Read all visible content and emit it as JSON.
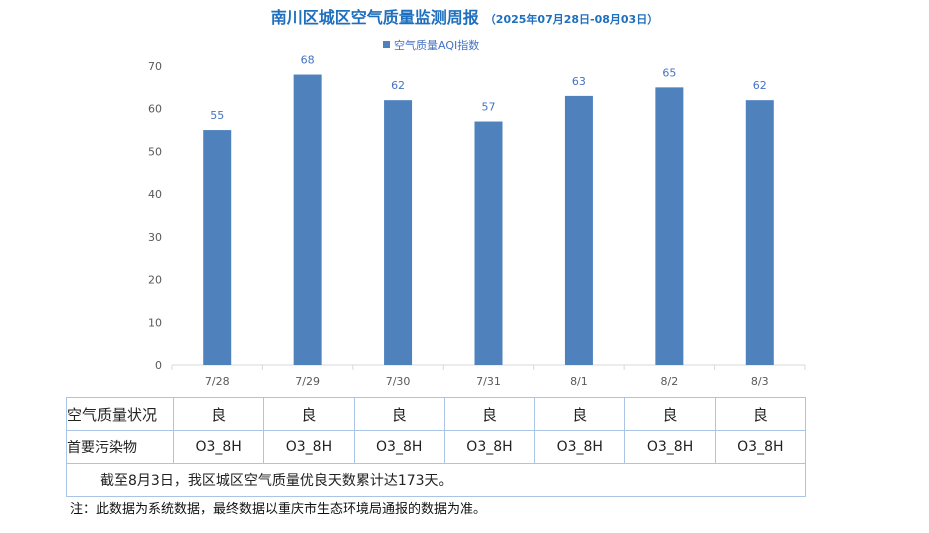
{
  "chart_data": {
    "type": "bar",
    "title": "南川区城区空气质量监测周报",
    "subtitle": "（2025年07月28日-08月03日）",
    "categories": [
      "7/28",
      "7/29",
      "7/30",
      "7/31",
      "8/1",
      "8/2",
      "8/3"
    ],
    "series": [
      {
        "name": "空气质量AQI指数",
        "values": [
          55,
          68,
          62,
          57,
          63,
          65,
          62
        ]
      }
    ],
    "ylim": [
      0,
      70
    ],
    "yticks": [
      0,
      10,
      20,
      30,
      40,
      50,
      60,
      70
    ],
    "legend_position": "top-center",
    "grid": false,
    "show_data_labels": true,
    "colors": {
      "bar": "#4f81bd",
      "label": "#4472c4",
      "axis_text": "#595959",
      "axis_line": "#d9d9d9"
    }
  },
  "table": {
    "rows": [
      {
        "label": "空气质量状况",
        "cells": [
          "良",
          "良",
          "良",
          "良",
          "良",
          "良",
          "良"
        ]
      },
      {
        "label": "首要污染物",
        "cells": [
          "O3_8H",
          "O3_8H",
          "O3_8H",
          "O3_8H",
          "O3_8H",
          "O3_8H",
          "O3_8H"
        ]
      }
    ],
    "summary": "截至8月3日，我区城区空气质量优良天数累计达173天。",
    "border_color": "#a9c4e4"
  },
  "footnote": "注：此数据为系统数据，最终数据以重庆市生态环境局通报的数据为准。"
}
